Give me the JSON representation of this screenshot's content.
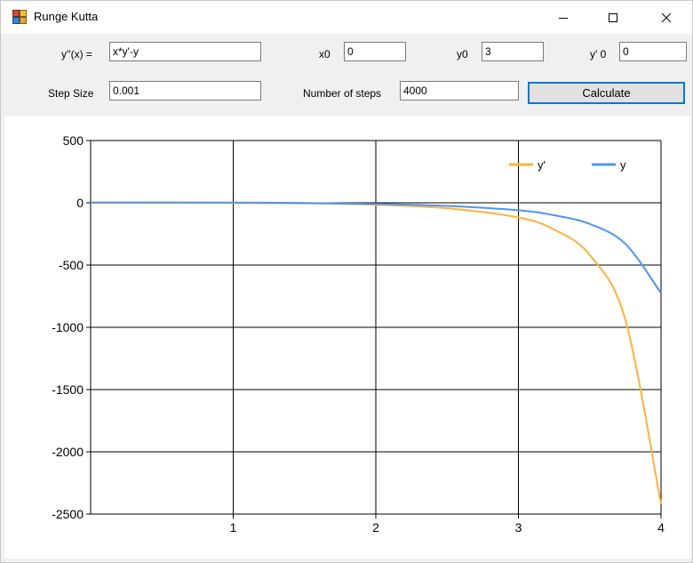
{
  "window": {
    "title": "Runge Kutta",
    "icon": "app-icon",
    "controls": [
      "minimize-icon",
      "maximize-icon",
      "close-icon"
    ]
  },
  "form": {
    "equation_label": "y''(x) =",
    "equation_value": "x*y'-y",
    "x0_label": "x0",
    "x0_value": "0",
    "y0_label": "y0",
    "y0_value": "3",
    "dy0_label": "y' 0",
    "dy0_value": "0",
    "step_size_label": "Step Size",
    "step_size_value": "0.001",
    "num_steps_label": "Number of steps",
    "num_steps_value": "4000",
    "calculate_label": "Calculate"
  },
  "chart_data": {
    "type": "line",
    "xlim": [
      0,
      4
    ],
    "ylim": [
      -2500,
      500
    ],
    "x_ticks": [
      "1",
      "2",
      "3",
      "4"
    ],
    "y_ticks": [
      "500",
      "0",
      "-500",
      "-1000",
      "-1500",
      "-2000",
      "-2500"
    ],
    "grid": true,
    "legend_position": "top-right",
    "series": [
      {
        "name": "y'",
        "color": "#ffb13b",
        "x": [
          0,
          1,
          1.5,
          2,
          2.5,
          3,
          3.25,
          3.5,
          3.75,
          4
        ],
        "y": [
          0,
          -1.4,
          -5,
          -16,
          -44,
          -118,
          -215,
          -420,
          -940,
          -2420
        ]
      },
      {
        "name": "y",
        "color": "#4f94f0",
        "x": [
          0,
          1,
          1.5,
          2,
          2.5,
          3,
          3.25,
          3.5,
          3.75,
          4
        ],
        "y": [
          3,
          1.8,
          -1.5,
          -9,
          -25,
          -60,
          -100,
          -170,
          -330,
          -725
        ]
      }
    ]
  }
}
